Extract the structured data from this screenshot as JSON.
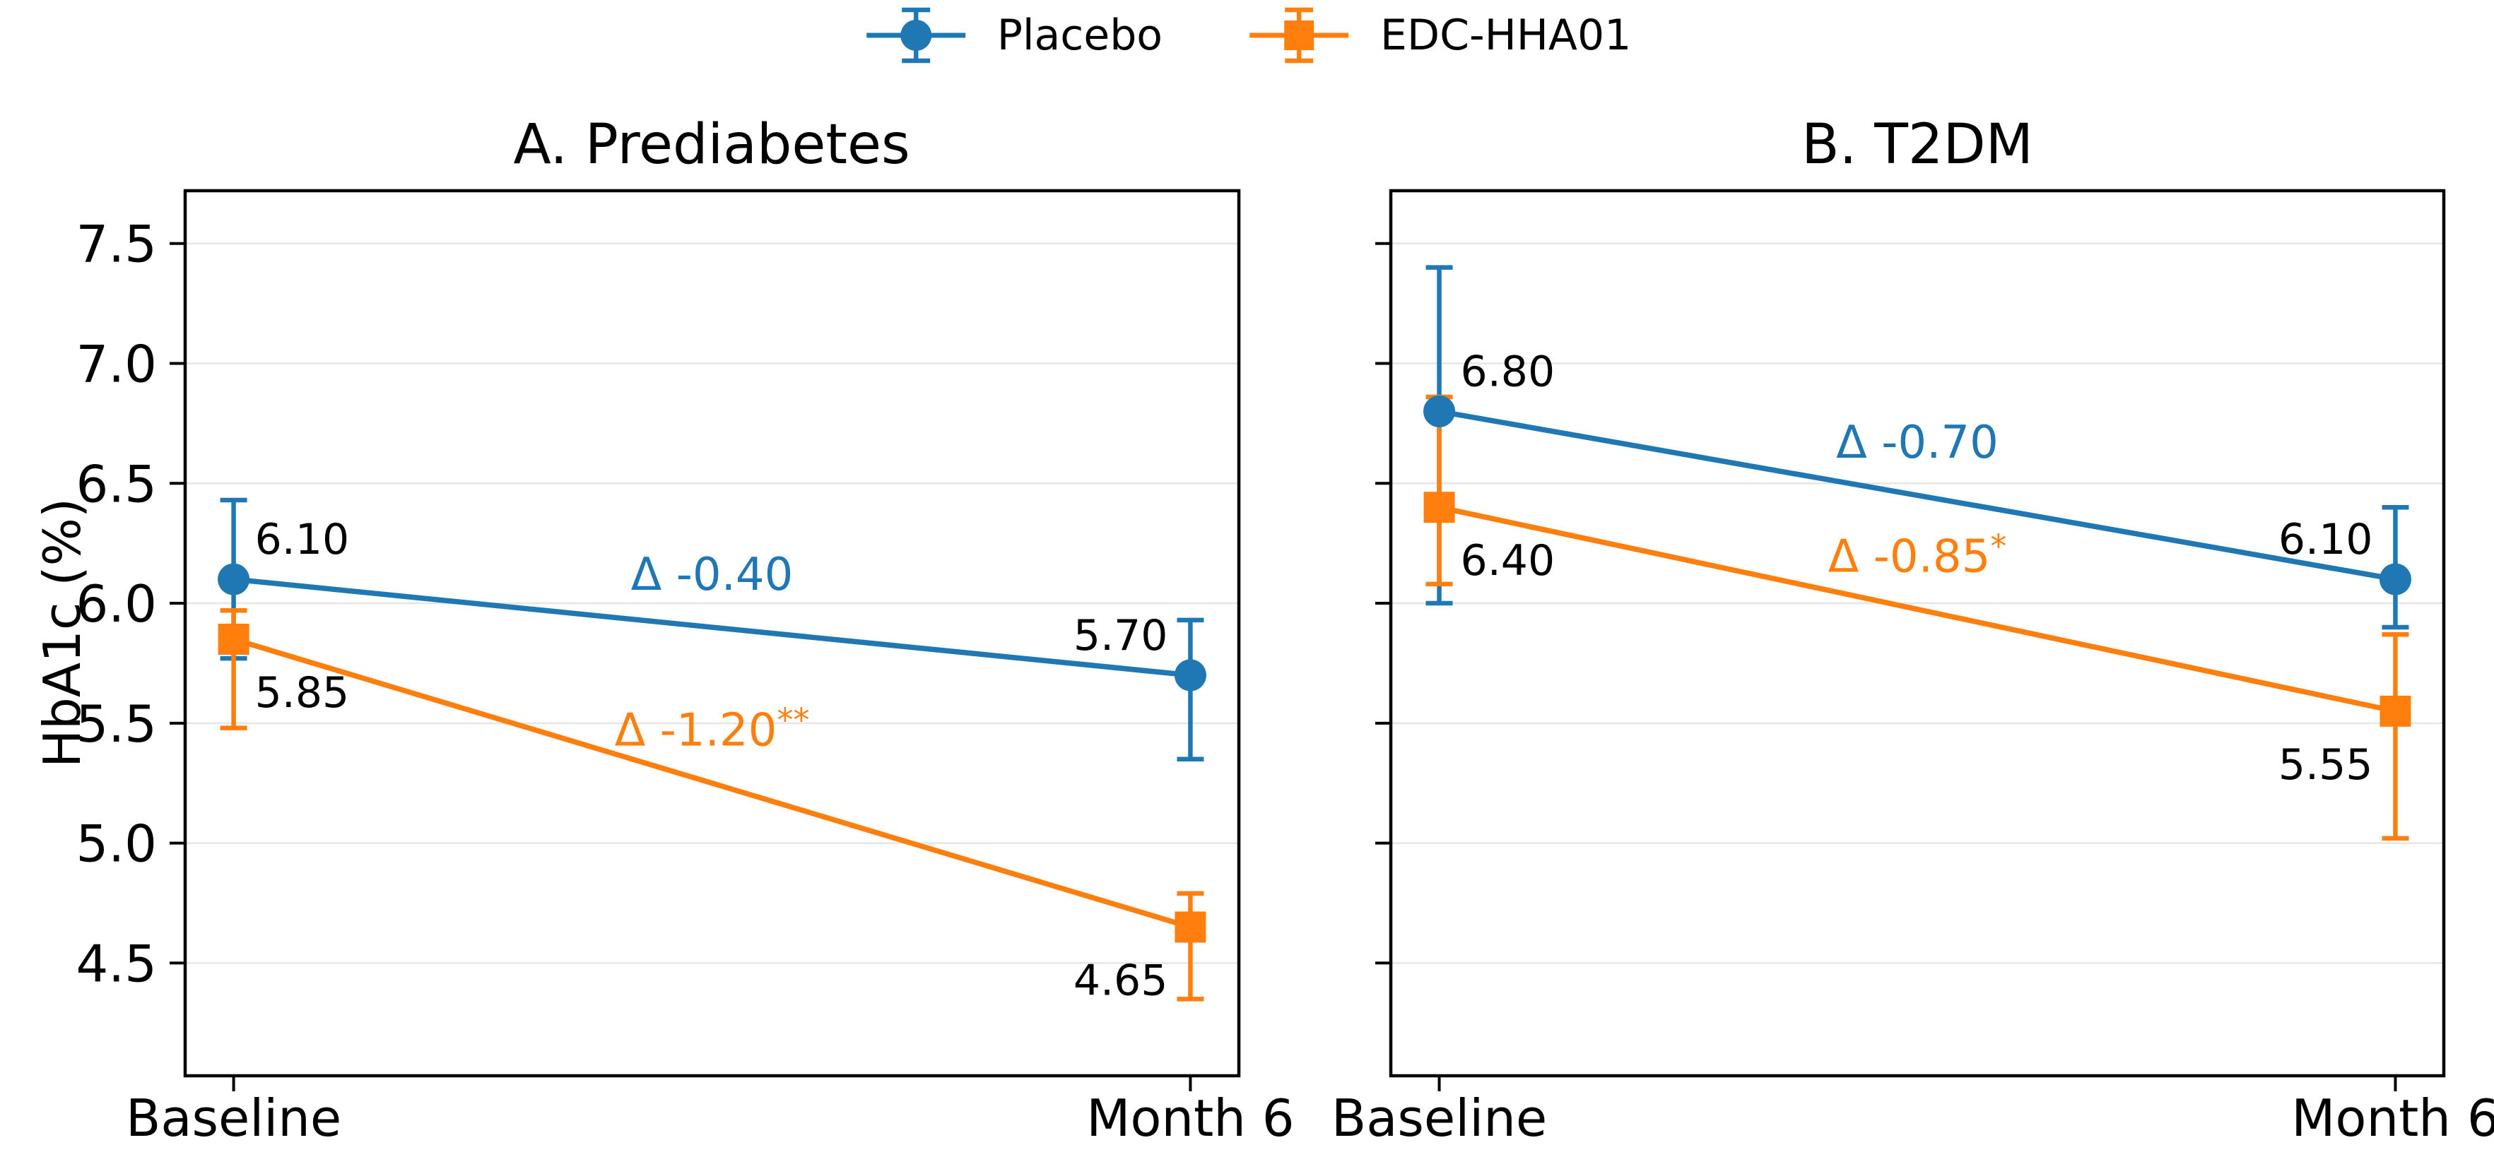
{
  "chart_data": {
    "type": "line",
    "description": "Two-panel errorbar line chart of HbA1c (%) at Baseline and Month 6",
    "ylabel": "HbA1c (%)",
    "x_categories": [
      "Baseline",
      "Month 6"
    ],
    "yticks": [
      4.5,
      5.0,
      5.5,
      6.0,
      6.5,
      7.0,
      7.5
    ],
    "ytick_labels": [
      "4.5",
      "5.0",
      "5.5",
      "6.0",
      "6.5",
      "7.0",
      "7.5"
    ],
    "ylim": [
      4.03,
      7.72
    ],
    "grid": "horizontal",
    "colors": {
      "placebo": "#1f77b4",
      "edc_hha01": "#ff7f0e",
      "gridline": "#e6e6e6",
      "axis": "#000000"
    },
    "legend": {
      "position": "top-center",
      "entries": [
        {
          "label": "Placebo",
          "color": "#1f77b4",
          "marker": "circle"
        },
        {
          "label": "EDC-HHA01",
          "color": "#ff7f0e",
          "marker": "square"
        }
      ]
    },
    "panels": [
      {
        "title": "A. Prediabetes",
        "series": [
          {
            "name": "Placebo",
            "color": "#1f77b4",
            "marker": "circle",
            "points": [
              {
                "x": "Baseline",
                "y": 6.1,
                "err_up": 0.33,
                "err_down": 0.33,
                "label": "6.10",
                "label_pos": "above-right"
              },
              {
                "x": "Month 6",
                "y": 5.7,
                "err_up": 0.23,
                "err_down": 0.35,
                "label": "5.70",
                "label_pos": "above-left"
              }
            ],
            "delta_annotation": {
              "text": "Δ -0.40",
              "sup": ""
            }
          },
          {
            "name": "EDC-HHA01",
            "color": "#ff7f0e",
            "marker": "square",
            "points": [
              {
                "x": "Baseline",
                "y": 5.85,
                "err_up": 0.12,
                "err_down": 0.37,
                "label": "5.85",
                "label_pos": "below-right"
              },
              {
                "x": "Month 6",
                "y": 4.65,
                "err_up": 0.14,
                "err_down": 0.3,
                "label": "4.65",
                "label_pos": "below-left"
              }
            ],
            "delta_annotation": {
              "text": "Δ -1.20",
              "sup": "**"
            }
          }
        ]
      },
      {
        "title": "B. T2DM",
        "series": [
          {
            "name": "Placebo",
            "color": "#1f77b4",
            "marker": "circle",
            "points": [
              {
                "x": "Baseline",
                "y": 6.8,
                "err_up": 0.6,
                "err_down": 0.8,
                "label": "6.80",
                "label_pos": "above-right"
              },
              {
                "x": "Month 6",
                "y": 6.1,
                "err_up": 0.3,
                "err_down": 0.2,
                "label": "6.10",
                "label_pos": "above-left"
              }
            ],
            "delta_annotation": {
              "text": "Δ -0.70",
              "sup": ""
            }
          },
          {
            "name": "EDC-HHA01",
            "color": "#ff7f0e",
            "marker": "square",
            "points": [
              {
                "x": "Baseline",
                "y": 6.4,
                "err_up": 0.46,
                "err_down": 0.32,
                "label": "6.40",
                "label_pos": "below-right"
              },
              {
                "x": "Month 6",
                "y": 5.55,
                "err_up": 0.32,
                "err_down": 0.53,
                "label": "5.55",
                "label_pos": "below-left"
              }
            ],
            "delta_annotation": {
              "text": "Δ -0.85",
              "sup": "*"
            }
          }
        ]
      }
    ]
  }
}
